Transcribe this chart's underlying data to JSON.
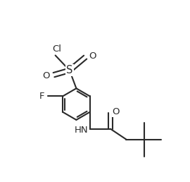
{
  "bg_color": "#ffffff",
  "line_color": "#2a2a2a",
  "line_width": 1.5,
  "font_size": 9.5,
  "figsize": [
    2.7,
    2.58
  ],
  "dpi": 100,
  "xlim": [
    -0.5,
    3.2
  ],
  "ylim": [
    -3.0,
    1.8
  ]
}
